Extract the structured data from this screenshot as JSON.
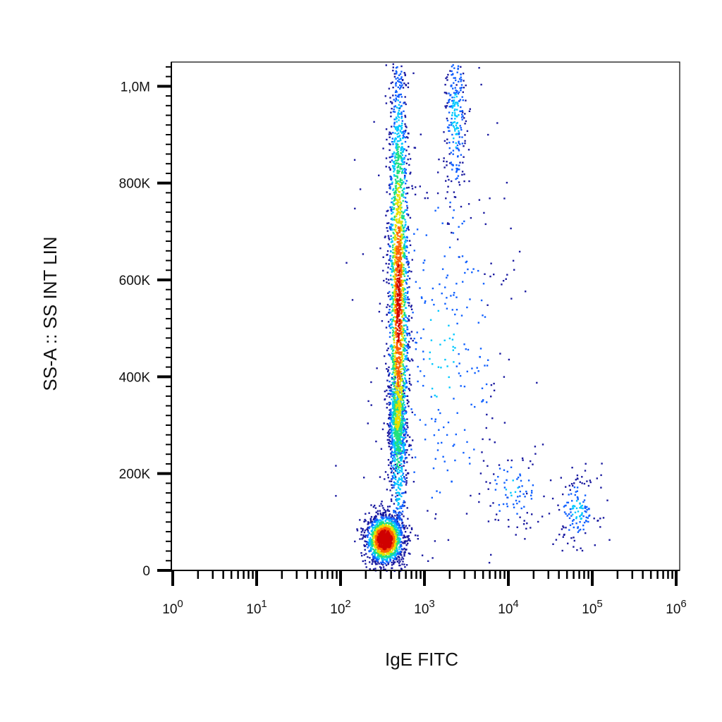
{
  "chart_data": {
    "type": "scatter",
    "style": "density-dot-plot",
    "xlabel": "IgE FITC",
    "ylabel": "SS-A :: SS INT LIN",
    "x_scale": "log",
    "xlim": [
      0.5,
      1300000
    ],
    "ylim": [
      0,
      1050000
    ],
    "x_ticks": [
      {
        "value": 1,
        "base": "10",
        "exp": "0"
      },
      {
        "value": 10,
        "base": "10",
        "exp": "1"
      },
      {
        "value": 100,
        "base": "10",
        "exp": "2"
      },
      {
        "value": 1000,
        "base": "10",
        "exp": "3"
      },
      {
        "value": 10000,
        "base": "10",
        "exp": "4"
      },
      {
        "value": 100000,
        "base": "10",
        "exp": "5"
      },
      {
        "value": 1000000,
        "base": "10",
        "exp": "6"
      }
    ],
    "y_ticks": [
      {
        "value": 0,
        "label": "0"
      },
      {
        "value": 200000,
        "label": "200K"
      },
      {
        "value": 400000,
        "label": "400K"
      },
      {
        "value": 600000,
        "label": "600K"
      },
      {
        "value": 800000,
        "label": "800K"
      },
      {
        "value": 1000000,
        "label": "1,0M"
      }
    ],
    "density_colors": [
      "#1a1aa0",
      "#1060ff",
      "#00c8ff",
      "#20e080",
      "#e8e000",
      "#ff6000",
      "#d00000"
    ],
    "populations": [
      {
        "name": "",
        "x_center": 330,
        "y_center": 65000,
        "x_spread_log": 0.11,
        "y_spread": 25000,
        "points": 1500,
        "peak": 1.0
      },
      {
        "name": "",
        "x_center": 480,
        "y_center": 550000,
        "x_spread_log": 0.06,
        "y_spread": 270000,
        "points": 2400,
        "peak": 0.65
      },
      {
        "name": "",
        "x_center": 460,
        "y_center": 310000,
        "x_spread_log": 0.05,
        "y_spread": 50000,
        "points": 500,
        "peak": 0.35
      },
      {
        "name": "",
        "x_center": 2300,
        "y_center": 930000,
        "x_spread_log": 0.07,
        "y_spread": 90000,
        "points": 260,
        "peak": 0.05
      },
      {
        "name": "",
        "x_center": 11000,
        "y_center": 170000,
        "x_spread_log": 0.2,
        "y_spread": 45000,
        "points": 90,
        "peak": 0.0
      },
      {
        "name": "",
        "x_center": 65000,
        "y_center": 125000,
        "x_spread_log": 0.12,
        "y_spread": 35000,
        "points": 150,
        "peak": 0.05
      },
      {
        "name": "",
        "x_center": 1500,
        "y_center": 450000,
        "x_spread_log": 0.45,
        "y_spread": 250000,
        "points": 350,
        "peak": 0.0
      }
    ]
  }
}
